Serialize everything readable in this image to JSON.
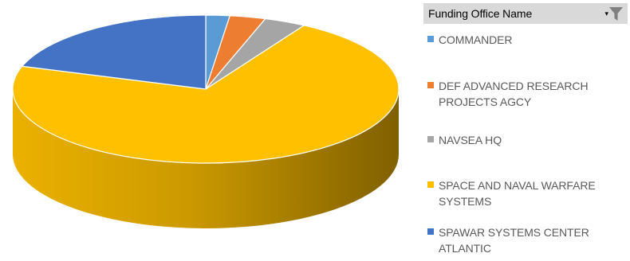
{
  "chart_data": {
    "type": "pie",
    "style": "3d",
    "title": "",
    "slices": [
      {
        "label": "COMMANDER",
        "value": 2,
        "color": "#5B9BD5"
      },
      {
        "label": "DEF ADVANCED RESEARCH PROJECTS AGCY",
        "value": 3,
        "color": "#ED7D31"
      },
      {
        "label": "NAVSEA HQ",
        "value": 3.5,
        "color": "#A5A5A5"
      },
      {
        "label": "SPACE AND NAVAL WARFARE SYSTEMS",
        "value": 71.5,
        "color": "#FFC000"
      },
      {
        "label": "SPAWAR SYSTEMS CENTER ATLANTIC",
        "value": 20,
        "color": "#4472C4"
      }
    ]
  },
  "legend": {
    "title": "Funding Office Name",
    "placement": "right",
    "filter_icon": "funnel-filter-icon",
    "dropdown_icon": "dropdown-arrow-icon",
    "items": [
      {
        "label": "COMMANDER",
        "color": "#5B9BD5"
      },
      {
        "label": "DEF ADVANCED RESEARCH PROJECTS AGCY",
        "color": "#ED7D31"
      },
      {
        "label": "NAVSEA HQ",
        "color": "#A5A5A5"
      },
      {
        "label": "SPACE AND NAVAL WARFARE SYSTEMS",
        "color": "#FFC000"
      },
      {
        "label": "SPAWAR SYSTEMS CENTER ATLANTIC",
        "color": "#4472C4"
      }
    ]
  }
}
